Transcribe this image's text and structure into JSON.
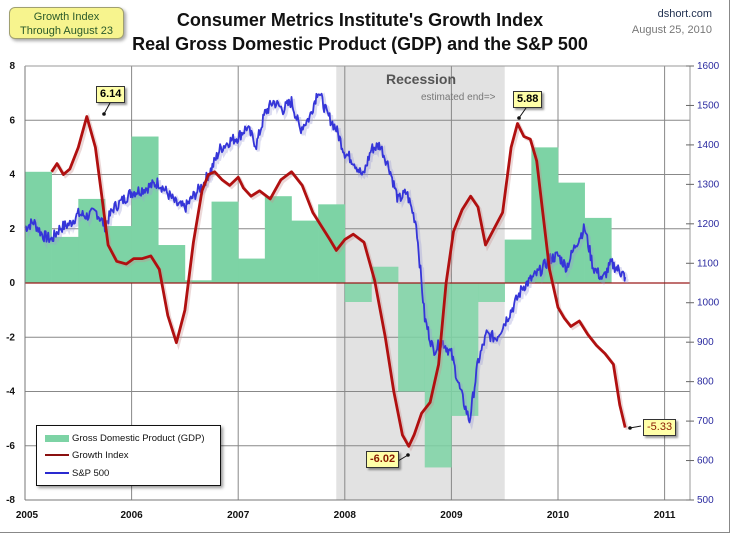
{
  "badge": {
    "line1": "Growth Index",
    "line2": "Through  August 23"
  },
  "header": {
    "title_line1": "Consumer Metrics Institute's Growth Index",
    "title_line2": "Real Gross Domestic Product (GDP) and the S&P 500",
    "source": "dshort.com",
    "date": "August 25, 2010"
  },
  "colors": {
    "gdp": "#7dd3a5",
    "growth": "#b01010",
    "sp500": "#3535d8",
    "recession": "#e2e2e2",
    "callout": "#ffffa8",
    "zero_line": "#9a1a1a"
  },
  "recession": {
    "label": "Recession",
    "note": "estimated end=>",
    "start": 2007.92,
    "end": 2009.5
  },
  "legend": {
    "items": [
      {
        "label": "Gross Domestic Product (GDP)"
      },
      {
        "label": "Growth Index"
      },
      {
        "label": "S&P 500"
      }
    ]
  },
  "callouts": {
    "peak_2005": "6.14",
    "trough_2008": "-6.02",
    "peak_2009": "5.88",
    "latest": "-5.33"
  },
  "chart_data": {
    "type": "line",
    "title": "Consumer Metrics Institute's Growth Index — Real Gross Domestic Product (GDP) and the S&P 500",
    "xlabel": "",
    "ylabel": "",
    "y2label": "",
    "xlim": [
      2005,
      2011.2
    ],
    "ylim": [
      -8,
      8
    ],
    "y2lim": [
      500,
      1650
    ],
    "x_ticks": [
      "2005",
      "2006",
      "2007",
      "2008",
      "2009",
      "2010",
      "2011"
    ],
    "y_ticks": [
      "8",
      "6",
      "4",
      "2",
      "0",
      "-2",
      "-4",
      "-6",
      "-8"
    ],
    "y2_ticks": [
      "1600",
      "1500",
      "1400",
      "1300",
      "1200",
      "1100",
      "1000",
      "900",
      "800",
      "700",
      "600",
      "500"
    ],
    "grid": true,
    "legend_position": "bottom-left",
    "gdp": {
      "name": "Gross Domestic Product (GDP)",
      "type": "bar",
      "quarters": [
        "2005Q1",
        "2005Q2",
        "2005Q3",
        "2005Q4",
        "2006Q1",
        "2006Q2",
        "2006Q3",
        "2006Q4",
        "2007Q1",
        "2007Q2",
        "2007Q3",
        "2007Q4",
        "2008Q1",
        "2008Q2",
        "2008Q3",
        "2008Q4",
        "2009Q1",
        "2009Q2",
        "2009Q3",
        "2009Q4",
        "2010Q1",
        "2010Q2"
      ],
      "values": [
        4.1,
        1.7,
        3.1,
        2.1,
        5.4,
        1.4,
        0.1,
        3.0,
        0.9,
        3.2,
        2.3,
        2.9,
        -0.7,
        0.6,
        -4.0,
        -6.8,
        -4.9,
        -0.7,
        1.6,
        5.0,
        3.7,
        2.4
      ]
    },
    "series": [
      {
        "name": "Growth Index",
        "axis": "left",
        "x": [
          2005.25,
          2005.3,
          2005.36,
          2005.42,
          2005.5,
          2005.58,
          2005.66,
          2005.72,
          2005.78,
          2005.86,
          2005.95,
          2006.02,
          2006.1,
          2006.18,
          2006.26,
          2006.34,
          2006.42,
          2006.5,
          2006.58,
          2006.66,
          2006.72,
          2006.78,
          2006.85,
          2006.92,
          2007.0,
          2007.05,
          2007.12,
          2007.2,
          2007.3,
          2007.4,
          2007.5,
          2007.6,
          2007.7,
          2007.78,
          2007.86,
          2007.92,
          2008.0,
          2008.08,
          2008.18,
          2008.28,
          2008.38,
          2008.46,
          2008.54,
          2008.6,
          2008.65,
          2008.72,
          2008.8,
          2008.88,
          2008.95,
          2009.02,
          2009.1,
          2009.18,
          2009.25,
          2009.32,
          2009.4,
          2009.48,
          2009.56,
          2009.62,
          2009.68,
          2009.74,
          2009.8,
          2009.86,
          2009.92,
          2010.0,
          2010.06,
          2010.12,
          2010.2,
          2010.28,
          2010.36,
          2010.44,
          2010.52,
          2010.58,
          2010.63
        ],
        "values": [
          4.1,
          4.4,
          4.0,
          4.2,
          5.0,
          6.14,
          5.0,
          3.2,
          1.4,
          0.8,
          0.7,
          0.9,
          0.9,
          1.0,
          0.5,
          -1.2,
          -2.2,
          -1.0,
          1.5,
          3.4,
          4.0,
          4.1,
          3.8,
          3.6,
          3.9,
          3.5,
          3.2,
          3.4,
          3.1,
          3.8,
          4.1,
          3.6,
          2.6,
          2.1,
          1.6,
          1.2,
          1.6,
          1.8,
          1.5,
          0.1,
          -2.0,
          -4.0,
          -5.6,
          -6.02,
          -5.6,
          -4.8,
          -4.4,
          -3.0,
          0.0,
          1.9,
          2.7,
          3.2,
          2.8,
          1.4,
          2.0,
          2.6,
          5.0,
          5.88,
          5.4,
          5.3,
          4.5,
          2.5,
          0.5,
          -0.9,
          -1.3,
          -1.6,
          -1.4,
          -1.9,
          -2.3,
          -2.6,
          -3.0,
          -4.5,
          -5.33
        ]
      },
      {
        "name": "S&P 500",
        "axis": "right",
        "x": [
          2005.0,
          2005.08,
          2005.17,
          2005.25,
          2005.33,
          2005.42,
          2005.5,
          2005.58,
          2005.67,
          2005.75,
          2005.83,
          2005.92,
          2006.0,
          2006.08,
          2006.17,
          2006.25,
          2006.33,
          2006.42,
          2006.5,
          2006.58,
          2006.67,
          2006.75,
          2006.83,
          2006.92,
          2007.0,
          2007.08,
          2007.17,
          2007.25,
          2007.33,
          2007.42,
          2007.5,
          2007.58,
          2007.67,
          2007.75,
          2007.83,
          2007.92,
          2008.0,
          2008.08,
          2008.17,
          2008.25,
          2008.33,
          2008.42,
          2008.5,
          2008.58,
          2008.67,
          2008.75,
          2008.83,
          2008.92,
          2009.0,
          2009.08,
          2009.17,
          2009.25,
          2009.33,
          2009.42,
          2009.5,
          2009.58,
          2009.67,
          2009.75,
          2009.83,
          2009.92,
          2010.0,
          2010.08,
          2010.17,
          2010.25,
          2010.33,
          2010.42,
          2010.5,
          2010.58,
          2010.63
        ],
        "values": [
          1190,
          1205,
          1170,
          1160,
          1190,
          1200,
          1225,
          1220,
          1230,
          1195,
          1240,
          1260,
          1280,
          1285,
          1295,
          1305,
          1280,
          1250,
          1240,
          1270,
          1300,
          1340,
          1390,
          1410,
          1420,
          1445,
          1400,
          1480,
          1510,
          1490,
          1510,
          1440,
          1470,
          1540,
          1480,
          1440,
          1380,
          1360,
          1320,
          1390,
          1400,
          1340,
          1260,
          1280,
          1200,
          960,
          880,
          900,
          870,
          780,
          700,
          850,
          920,
          910,
          950,
          990,
          1040,
          1060,
          1080,
          1110,
          1120,
          1090,
          1150,
          1190,
          1090,
          1060,
          1100,
          1080,
          1065
        ]
      }
    ]
  }
}
